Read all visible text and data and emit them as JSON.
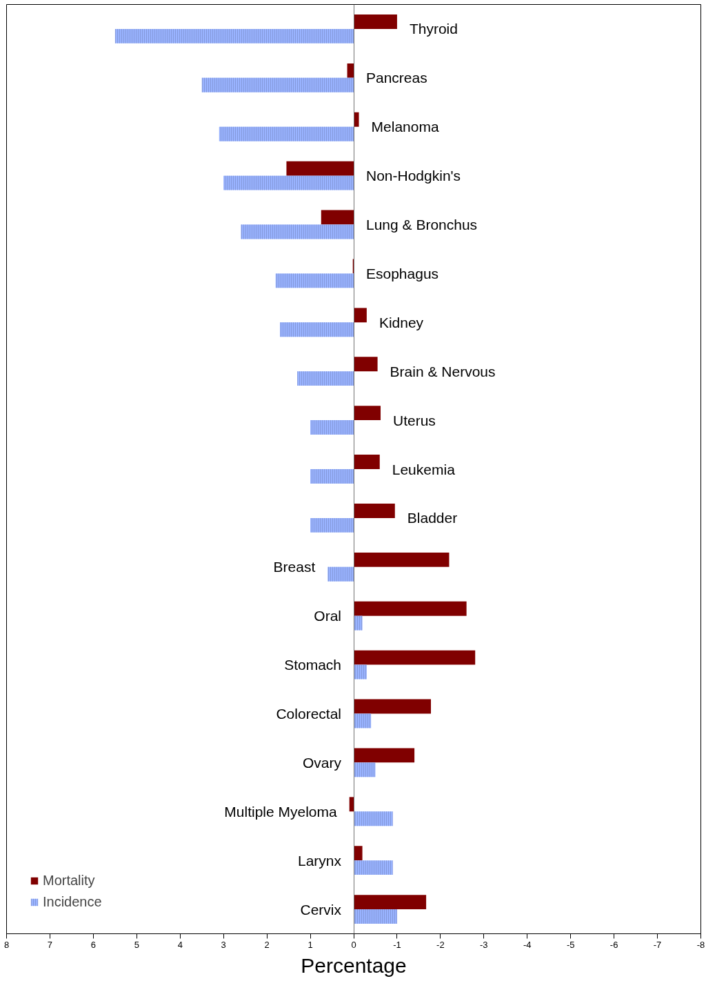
{
  "chart_data": {
    "type": "bar",
    "orientation": "horizontal",
    "xlabel": "Percentage",
    "categories": [
      "Thyroid",
      "Pancreas",
      "Melanoma",
      "Non-Hodgkin's",
      "Lung & Bronchus",
      "Esophagus",
      "Kidney",
      "Brain & Nervous",
      "Uterus",
      "Leukemia",
      "Bladder",
      "Breast",
      "Oral",
      "Stomach",
      "Colorectal",
      "Ovary",
      "Multiple Myeloma",
      "Larynx",
      "Cervix"
    ],
    "series": [
      {
        "name": "Mortality",
        "color": "#800000",
        "values": [
          -1.0,
          0.15,
          -0.12,
          1.55,
          0.75,
          0.02,
          -0.3,
          -0.55,
          -0.62,
          -0.6,
          -0.95,
          -2.2,
          -2.6,
          -2.8,
          -1.78,
          -1.4,
          0.1,
          -0.2,
          -1.67
        ]
      },
      {
        "name": "Incidence",
        "color": "#99b3ff",
        "values": [
          5.5,
          3.5,
          3.1,
          3.0,
          2.6,
          1.8,
          1.7,
          1.3,
          1.0,
          1.0,
          1.0,
          0.6,
          -0.2,
          -0.3,
          -0.4,
          -0.5,
          -0.9,
          -0.9,
          -1.0
        ]
      }
    ],
    "xlim": [
      8,
      -8
    ],
    "xticks": [
      8,
      7,
      6,
      5,
      4,
      3,
      2,
      1,
      0,
      -1,
      -2,
      -3,
      -4,
      -5,
      -6,
      -7,
      -8
    ],
    "legend": "bottom left"
  }
}
